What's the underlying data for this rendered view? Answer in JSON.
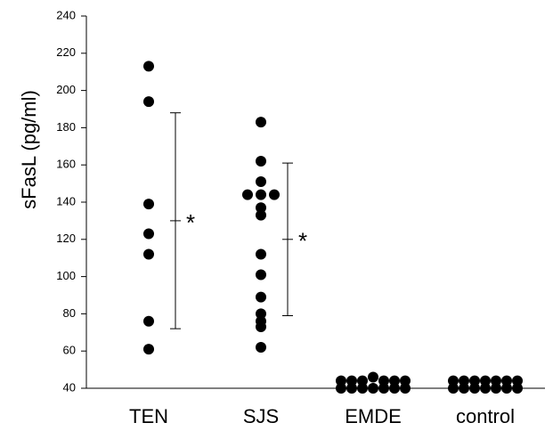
{
  "chart_data": {
    "type": "strip",
    "y_label": "sFasL  (pg/ml)",
    "categories": [
      "TEN",
      "SJS",
      "EMDE",
      "control"
    ],
    "values": [
      [
        213,
        194,
        139,
        123,
        112,
        76,
        61
      ],
      [
        183,
        162,
        151,
        144,
        144,
        144,
        137,
        133,
        112,
        101,
        89,
        80,
        76,
        73,
        62
      ],
      [
        44,
        44,
        44,
        46,
        44,
        44,
        44,
        40,
        40,
        40,
        40,
        40,
        40,
        40
      ],
      [
        44,
        44,
        44,
        44,
        44,
        44,
        44,
        40,
        40,
        40,
        40,
        40,
        40,
        40
      ]
    ],
    "mean": [
      130,
      120,
      null,
      null
    ],
    "sd": [
      58,
      41,
      null,
      null
    ],
    "significance": [
      "*",
      "*",
      null,
      null
    ],
    "color": "#000000",
    "ylim": [
      40,
      240
    ],
    "yticks": [
      40,
      60,
      80,
      100,
      120,
      140,
      160,
      180,
      200,
      220,
      240
    ]
  }
}
